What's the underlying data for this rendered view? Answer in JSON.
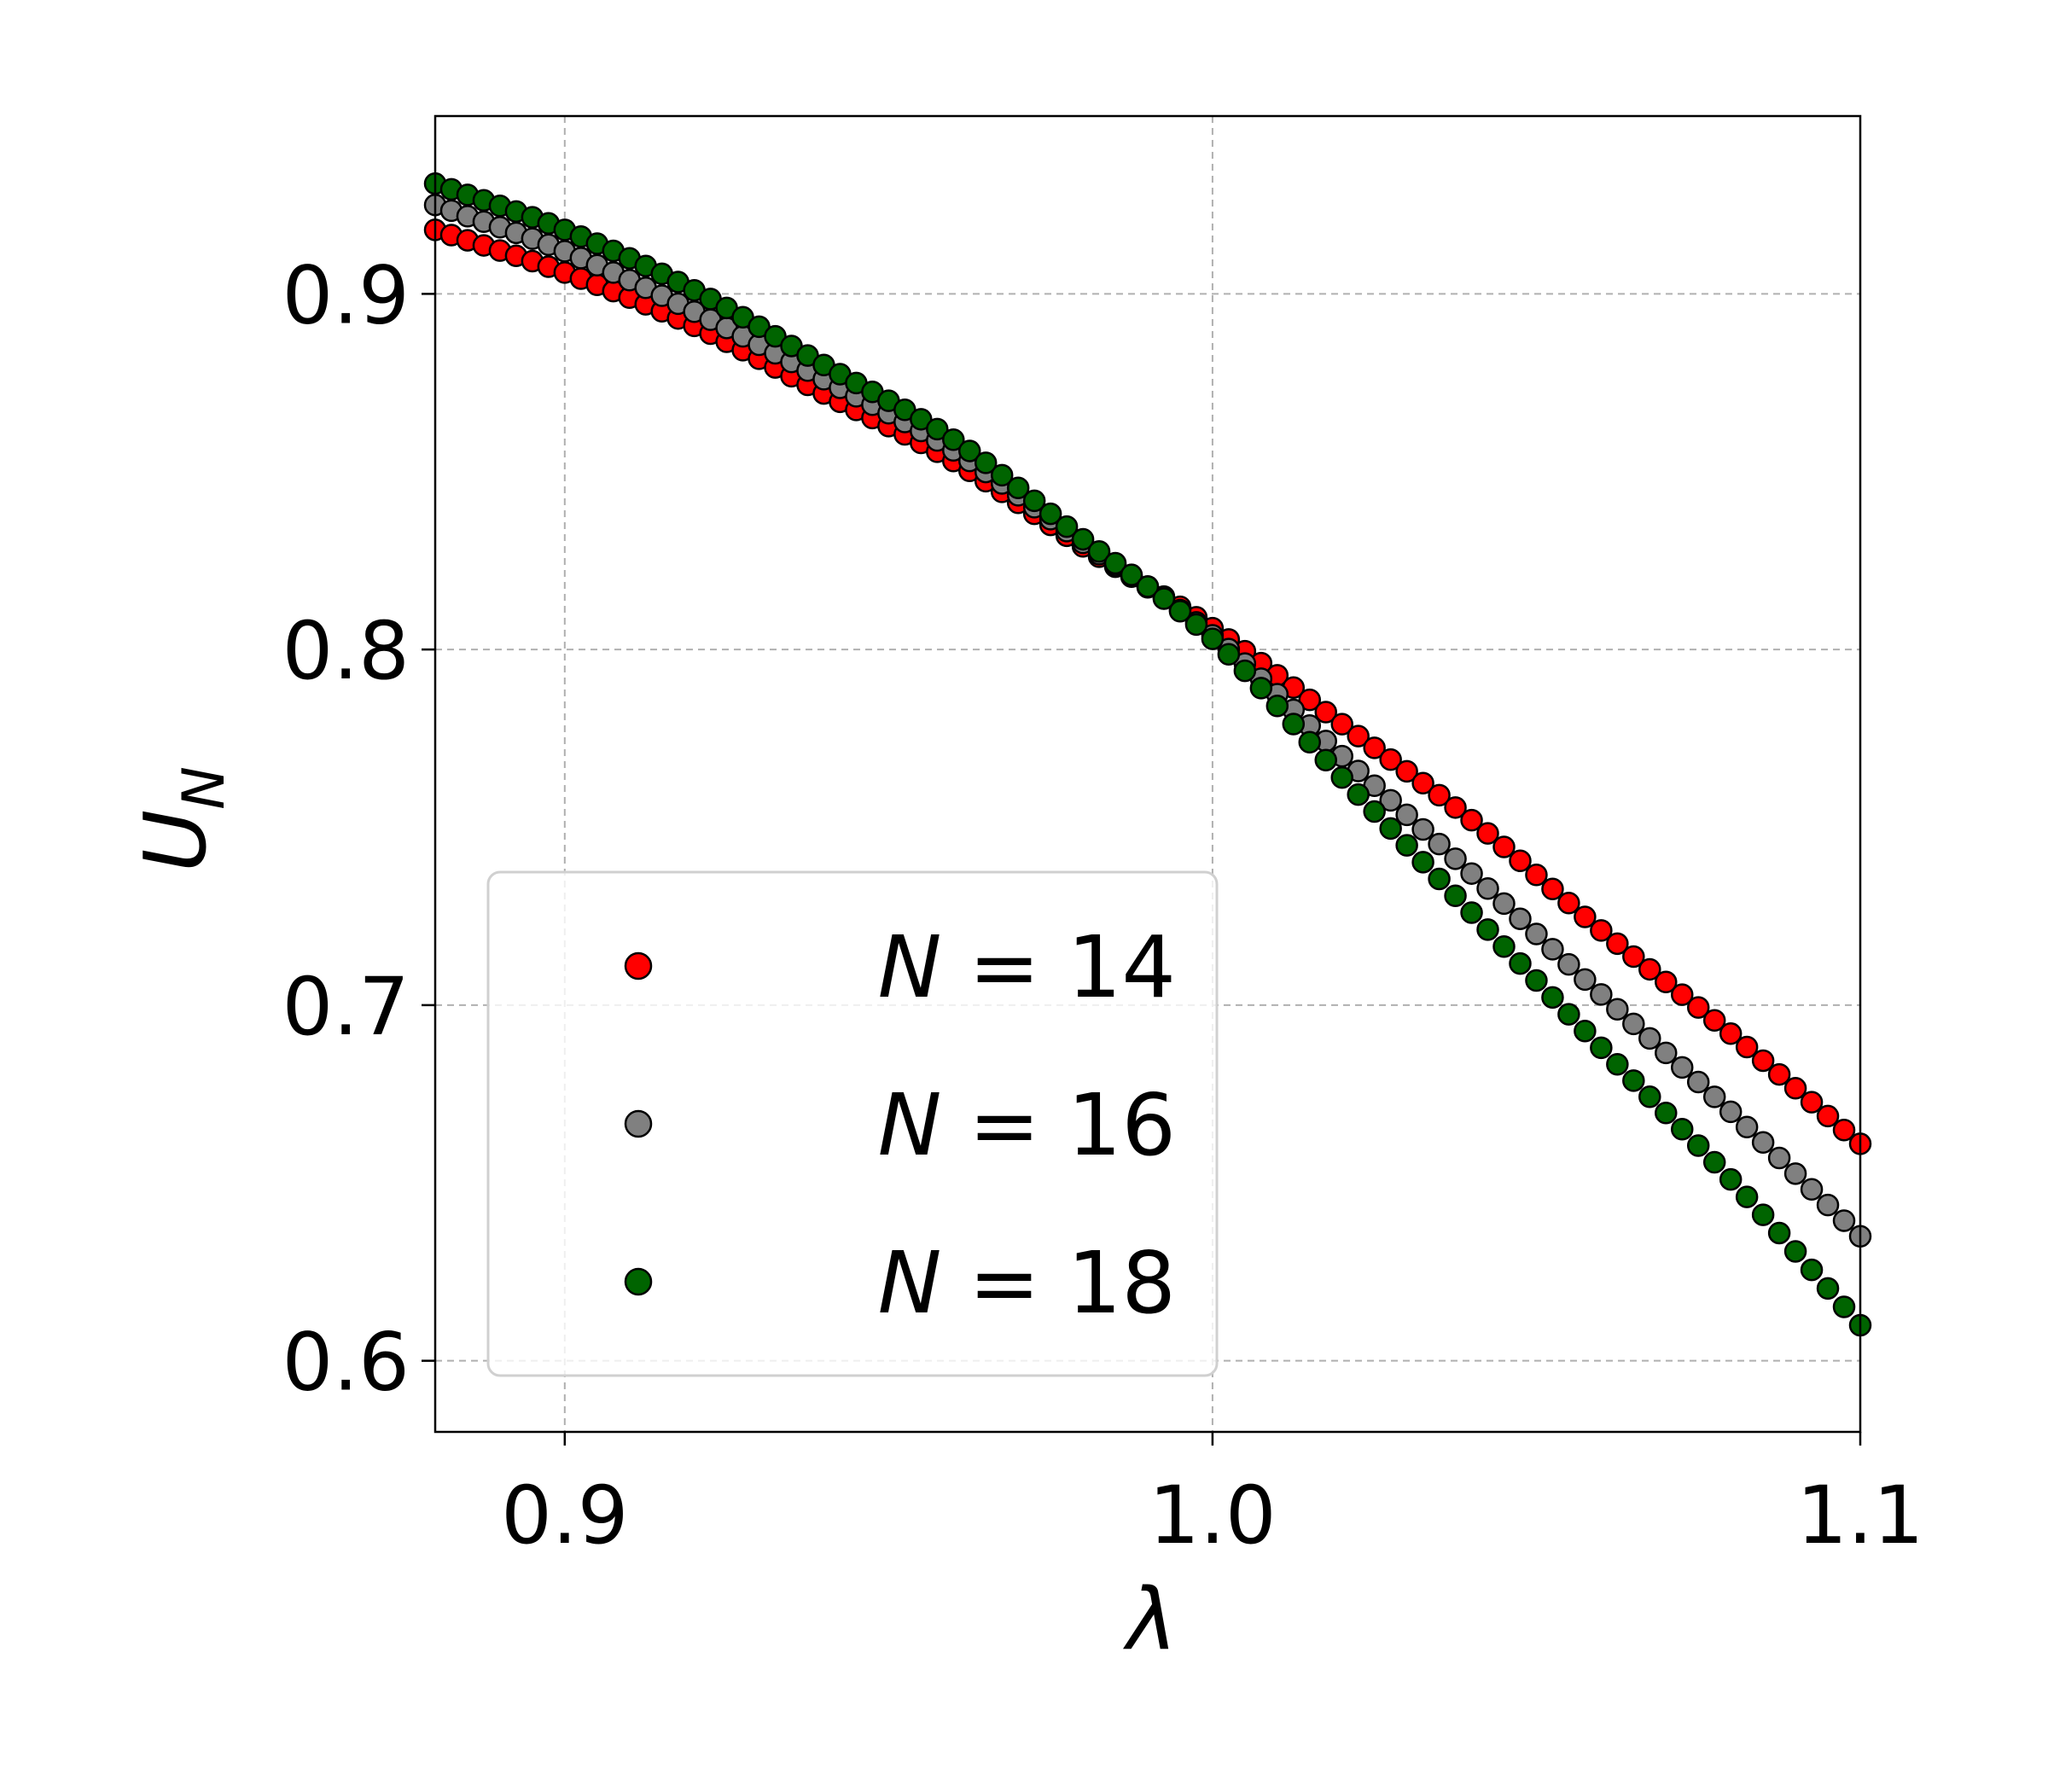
{
  "chart_data": {
    "type": "scatter",
    "title": "",
    "xlabel": "λ",
    "ylabel": {
      "main": "U",
      "sub": "N"
    },
    "xlim": [
      0.88,
      1.1
    ],
    "ylim": [
      0.58,
      0.95
    ],
    "xticks": [
      {
        "value": 0.9,
        "label": "0.9"
      },
      {
        "value": 1.0,
        "label": "1.0"
      },
      {
        "value": 1.1,
        "label": "1.1"
      }
    ],
    "yticks": [
      {
        "value": 0.6,
        "label": "0.6"
      },
      {
        "value": 0.7,
        "label": "0.7"
      },
      {
        "value": 0.8,
        "label": "0.8"
      },
      {
        "value": 0.9,
        "label": "0.9"
      }
    ],
    "grid": true,
    "legend_position": "lower-left",
    "x": {
      "start": 0.88,
      "step": 0.0025,
      "count": 89
    },
    "series": [
      {
        "name": "N = 14",
        "legend": {
          "var": "N",
          "eq": " = ",
          "val": "14"
        },
        "color": "#ff0000",
        "anchors": {
          "x": [
            0.88,
            0.9,
            0.92,
            0.94,
            0.96,
            0.98,
            1.0,
            1.02,
            1.04,
            1.06,
            1.08,
            1.1
          ],
          "y": [
            0.918,
            0.906,
            0.891,
            0.872,
            0.853,
            0.829,
            0.806,
            0.779,
            0.752,
            0.721,
            0.692,
            0.661
          ]
        }
      },
      {
        "name": "N = 16",
        "legend": {
          "var": "N",
          "eq": " = ",
          "val": "16"
        },
        "color": "#808080",
        "anchors": {
          "x": [
            0.88,
            0.9,
            0.92,
            0.94,
            0.96,
            0.98,
            1.0,
            1.02,
            1.04,
            1.06,
            1.08,
            1.1
          ],
          "y": [
            0.925,
            0.912,
            0.895,
            0.876,
            0.856,
            0.83,
            0.804,
            0.77,
            0.737,
            0.703,
            0.67,
            0.635
          ]
        }
      },
      {
        "name": "N = 18",
        "legend": {
          "var": "N",
          "eq": " = ",
          "val": "18"
        },
        "color": "#006400",
        "anchors": {
          "x": [
            0.88,
            0.9,
            0.92,
            0.94,
            0.96,
            0.98,
            1.0,
            1.02,
            1.04,
            1.06,
            1.08,
            1.1
          ],
          "y": [
            0.931,
            0.918,
            0.901,
            0.88,
            0.859,
            0.831,
            0.803,
            0.764,
            0.726,
            0.688,
            0.651,
            0.61
          ]
        }
      }
    ]
  }
}
